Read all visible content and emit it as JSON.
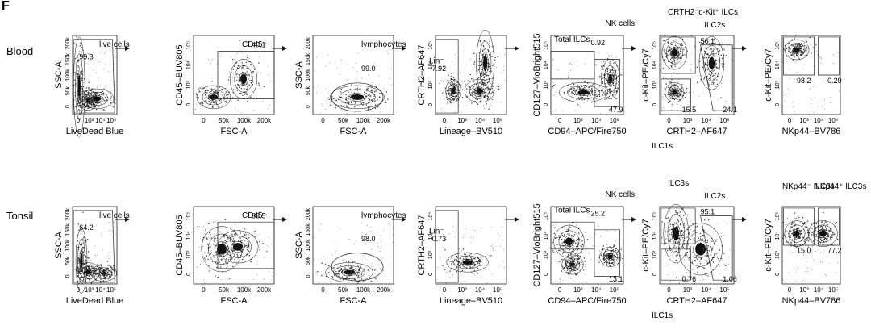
{
  "figure": {
    "panel_letter": "F"
  },
  "rows": [
    {
      "label": "Blood",
      "panels": [
        {
          "xlabel": "LiveDead Blue",
          "ylabel": "SSC-A",
          "xticks": [
            "0",
            "10³",
            "10⁴",
            "10⁵"
          ],
          "yticks": [
            "200k",
            "150k",
            "100k",
            "50k",
            "0"
          ],
          "gates": [
            {
              "label": "live cells",
              "value": "99.3"
            }
          ]
        },
        {
          "xlabel": "FSC-A",
          "ylabel": "CD45–BUV805",
          "xticks": [
            "0",
            "50k",
            "100k",
            "200k"
          ],
          "yticks": [
            "10⁵",
            "10⁴",
            "10³",
            "0"
          ],
          "gates": [
            {
              "label": "CD45+",
              "value": "40.1"
            }
          ]
        },
        {
          "xlabel": "FSC-A",
          "ylabel": "SSC-A",
          "xticks": [
            "0",
            "50k",
            "100k",
            "200k"
          ],
          "yticks": [
            "200k",
            "150k",
            "100k",
            "50k",
            "0"
          ],
          "gates": [
            {
              "label": "lymphocytes",
              "value": "99.0"
            }
          ]
        },
        {
          "xlabel": "Lineage–BV510",
          "ylabel": "CRTH2–AF647",
          "xticks": [
            "0",
            "10³",
            "10⁴",
            "10⁵"
          ],
          "yticks": [
            "10⁵",
            "10⁴",
            "10³",
            "0"
          ],
          "gates": [
            {
              "label": "Lin⁻",
              "value": "7.92"
            }
          ]
        },
        {
          "xlabel": "CD94–APC/Fire750",
          "ylabel": "CD127–VioBright515",
          "xticks": [
            "0",
            "10³",
            "10⁴",
            "10⁵"
          ],
          "yticks": [
            "10⁵",
            "10⁴",
            "10³",
            "0"
          ],
          "gates": [
            {
              "label": "Total ILCs",
              "value": "0.92"
            },
            {
              "label": "NK cells",
              "value": "47.9"
            }
          ]
        },
        {
          "xlabel": "CRTH2–AF647",
          "ylabel": "c-Kit–PE/Cy7",
          "xticks": [
            "0",
            "10³",
            "10⁴",
            "10⁵"
          ],
          "yticks": [
            "10⁵",
            "10⁴",
            "10³",
            "0"
          ],
          "gates": [
            {
              "label": "CRTH2⁻c-Kit⁺ ILCs",
              "value": "56.1"
            },
            {
              "label": "ILC2s",
              "value": "24.1"
            },
            {
              "label": "ILC1s",
              "value": "15.5"
            }
          ]
        },
        {
          "xlabel": "NKp44–BV786",
          "ylabel": "c-Kit–PE/Cy7",
          "xticks": [
            "0",
            "10³",
            "10⁴",
            "10⁵"
          ],
          "yticks": [
            "10⁵",
            "10⁴",
            "10³",
            "0"
          ],
          "gates": [
            {
              "label": "",
              "value": "98.2"
            },
            {
              "label": "",
              "value": "0.29"
            }
          ]
        }
      ]
    },
    {
      "label": "Tonsil",
      "panels": [
        {
          "xlabel": "LiveDead Blue",
          "ylabel": "SSC-A",
          "xticks": [
            "0",
            "10³",
            "10⁴",
            "10⁵"
          ],
          "yticks": [
            "200k",
            "150k",
            "100k",
            "50k",
            "0"
          ],
          "gates": [
            {
              "label": "live cells",
              "value": "64.2"
            }
          ]
        },
        {
          "xlabel": "FSC-A",
          "ylabel": "CD45–BUV805",
          "xticks": [
            "0",
            "50k",
            "100k",
            "200k"
          ],
          "yticks": [
            "10⁵",
            "10⁴",
            "10³",
            "0"
          ],
          "gates": [
            {
              "label": "CD45+",
              "value": "88.5"
            }
          ]
        },
        {
          "xlabel": "FSC-A",
          "ylabel": "SSC-A",
          "xticks": [
            "0",
            "50k",
            "100k",
            "200k"
          ],
          "yticks": [
            "200k",
            "150k",
            "100k",
            "50k",
            "0"
          ],
          "gates": [
            {
              "label": "lymphocytes",
              "value": "98.0"
            }
          ]
        },
        {
          "xlabel": "Lineage–BV510",
          "ylabel": "CRTH2–AF647",
          "xticks": [
            "0",
            "10³",
            "10⁴",
            "10⁵"
          ],
          "yticks": [
            "10⁵",
            "10⁴",
            "10³",
            "0"
          ],
          "gates": [
            {
              "label": "Lin⁻",
              "value": "0.73"
            }
          ]
        },
        {
          "xlabel": "CD94–APC/Fire750",
          "ylabel": "CD127–VioBright515",
          "xticks": [
            "0",
            "10³",
            "10⁴",
            "10⁵"
          ],
          "yticks": [
            "10⁵",
            "10⁴",
            "10³",
            "0"
          ],
          "gates": [
            {
              "label": "Total ILCs",
              "value": "25.2"
            },
            {
              "label": "NK cells",
              "value": "13.1"
            }
          ]
        },
        {
          "xlabel": "CRTH2–AF647",
          "ylabel": "c-Kit–PE/Cy7",
          "xticks": [
            "0",
            "10³",
            "10⁴",
            "10⁵"
          ],
          "yticks": [
            "10⁵",
            "10⁴",
            "10³",
            "0"
          ],
          "gates": [
            {
              "label": "ILC3s",
              "value": "95.1"
            },
            {
              "label": "ILC2s",
              "value": "1.06"
            },
            {
              "label": "ILC1s",
              "value": "0.76"
            }
          ]
        },
        {
          "xlabel": "NKp44–BV786",
          "ylabel": "c-Kit–PE/Cy7",
          "xticks": [
            "0",
            "10³",
            "10⁴",
            "10⁵"
          ],
          "yticks": [
            "10⁵",
            "10⁴",
            "10³",
            "0"
          ],
          "gates": [
            {
              "label": "NKp44⁻ ILC3s",
              "value": "15.0"
            },
            {
              "label": "NKp44⁺ ILC3s",
              "value": "77.2"
            }
          ]
        }
      ]
    }
  ]
}
